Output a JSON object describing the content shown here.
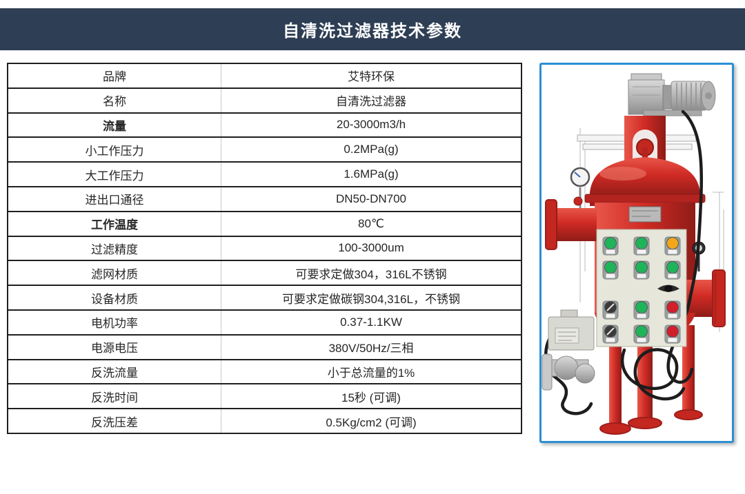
{
  "header": {
    "title": "自清洗过滤器技术参数",
    "bg_color": "#2e3e54",
    "text_color": "#ffffff"
  },
  "spec_table": {
    "rows": [
      {
        "label": "品牌",
        "value": "艾特环保",
        "label_bold": false
      },
      {
        "label": "名称",
        "value": "自清洗过滤器",
        "label_bold": false
      },
      {
        "label": "流量",
        "value": "20-3000m3/h",
        "label_bold": true
      },
      {
        "label": "小工作压力",
        "value": "0.2MPa(g)",
        "label_bold": false
      },
      {
        "label": "大工作压力",
        "value": "1.6MPa(g)",
        "label_bold": false
      },
      {
        "label": "进出口通径",
        "value": "DN50-DN700",
        "label_bold": false
      },
      {
        "label": "工作温度",
        "value": "80℃",
        "label_bold": true
      },
      {
        "label": "过滤精度",
        "value": "100-3000um",
        "label_bold": false
      },
      {
        "label": "滤网材质",
        "value": "可要求定做304，316L不锈钢",
        "label_bold": false
      },
      {
        "label": "设备材质",
        "value": "可要求定做碳钢304,316L，不锈钢",
        "label_bold": false
      },
      {
        "label": "电机功率",
        "value": "0.37-1.1KW",
        "label_bold": false
      },
      {
        "label": "电源电压",
        "value": "380V/50Hz/三相",
        "label_bold": false
      },
      {
        "label": "反洗流量",
        "value": "小于总流量的1%",
        "label_bold": false
      },
      {
        "label": "反洗时间",
        "value": "15秒 (可调)",
        "label_bold": false
      },
      {
        "label": "反洗压差",
        "value": "0.5Kg/cm2 (可调)",
        "label_bold": false
      }
    ]
  },
  "product_image": {
    "description": "自清洗过滤器产品照片",
    "frame_border_color": "#2b8fd3",
    "colors": {
      "body_red": "#cf2a24",
      "body_red_dark": "#9e1f1b",
      "motor_silver": "#b5b5b5",
      "panel_beige": "#e6e6da",
      "button_green": "#1fb45a",
      "button_yellow": "#f2a71b",
      "button_red": "#d21f2c",
      "switch_dark": "#3a3a3a",
      "cable_black": "#1d1d1d"
    },
    "control_panel": {
      "button_rows": [
        [
          "green",
          "green",
          "yellow"
        ],
        [
          "green",
          "green",
          "green"
        ],
        [
          "dark",
          "green",
          "red"
        ],
        [
          "dark",
          "green",
          "red"
        ]
      ]
    }
  }
}
